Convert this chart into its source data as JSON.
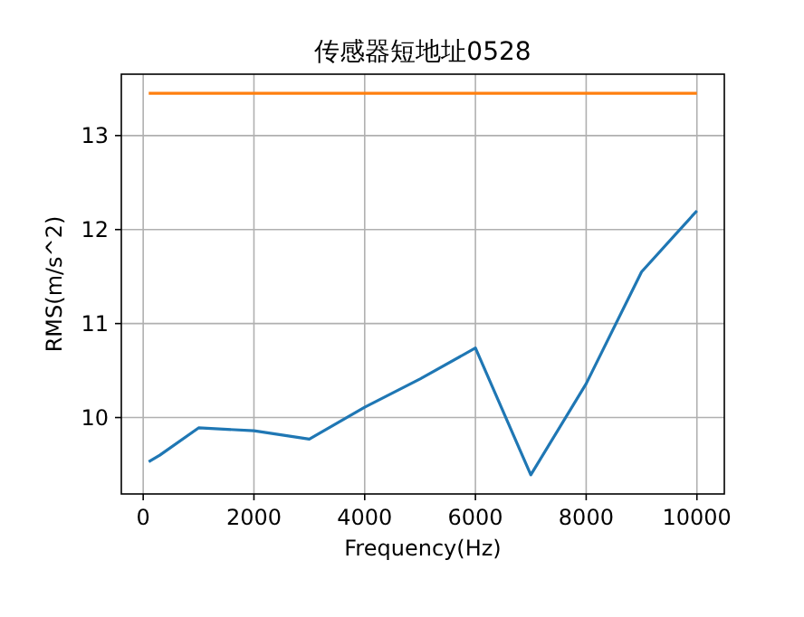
{
  "chart_data": {
    "type": "line",
    "title": "传感器短地址0528",
    "xlabel": "Frequency(Hz)",
    "ylabel": "RMS(m/s^2)",
    "xlim": [
      -395,
      10495
    ],
    "ylim": [
      9.187,
      13.653
    ],
    "xticks": [
      0,
      2000,
      4000,
      6000,
      8000,
      10000
    ],
    "yticks": [
      10,
      11,
      12,
      13
    ],
    "grid": true,
    "series": [
      {
        "color": "#1f77b4",
        "x": [
          100,
          300,
          1000,
          2000,
          3000,
          4000,
          5000,
          6000,
          7000,
          8000,
          9000,
          10000
        ],
        "values": [
          9.53,
          9.6,
          9.89,
          9.86,
          9.77,
          10.11,
          10.41,
          10.74,
          9.39,
          10.36,
          11.55,
          12.2
        ]
      },
      {
        "color": "#ff7f0e",
        "x": [
          100,
          10000
        ],
        "values": [
          13.45,
          13.45
        ]
      }
    ]
  }
}
